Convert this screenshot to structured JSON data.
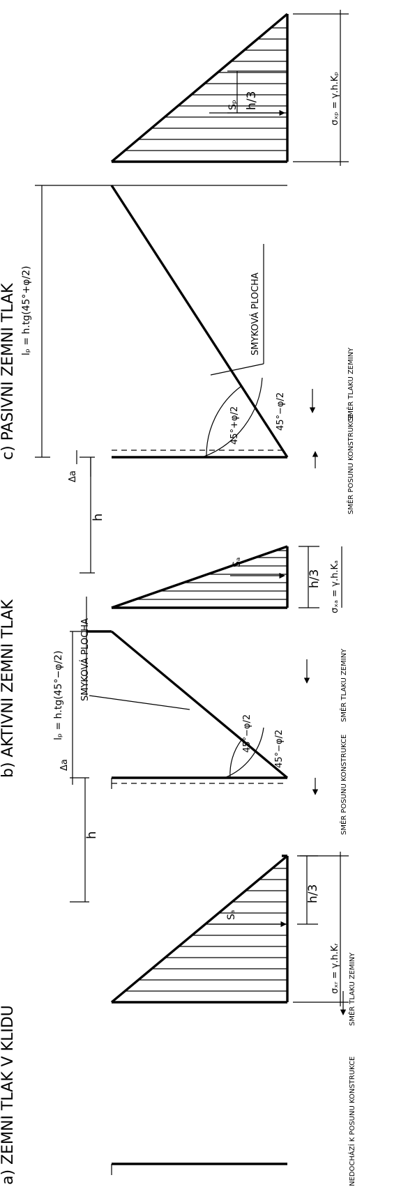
{
  "panel_a": {
    "title": "a) ZEMNÍ TLAK V KLIDU",
    "force": "Sₐ",
    "third": "h/3",
    "stress": "σₓᵣ = γ.h.Kᵣ",
    "displacement_note": "NEDOCHÁZÍ K POSUNU KONSTRUKCE",
    "pressure_dir": "SMĚR TLAKU ZEMINY"
  },
  "panel_b": {
    "title": "b) AKTIVNÍ ZEMNÍ TLAK",
    "delta": "Δa",
    "lp": "lₚ = h.tg(45°−φ/2)",
    "shear": "SMYKOVÁ PLOCHA",
    "angle_upper": "45°−φ/2",
    "angle_lower": "45°−φ/2",
    "height": "h",
    "force": "Sₐ",
    "third": "h/3",
    "stress": "σₓₐ = γ.h.Kₐ",
    "move_dir": "SMĚR POSUNU KONSTRUKCE",
    "pressure_dir": "SMĚR TLAKU ZEMINY"
  },
  "panel_c": {
    "title": "c) PASIVNÍ ZEMNÍ TLAK",
    "delta": "Δa",
    "lp": "lₚ = h.tg(45°+φ/2)",
    "shear": "SMYKOVÁ PLOCHA",
    "angle_upper": "45°+φ/2",
    "angle_lower": "45°−φ/2",
    "height": "h",
    "force": "Sₚ",
    "third": "h/3",
    "stress": "σₓₚ = γ.h.Kₚ",
    "move_dir": "SMĚR POSUNU KONSTRUKCE",
    "pressure_dir": "SMĚR TLAKU ZEMINY"
  }
}
